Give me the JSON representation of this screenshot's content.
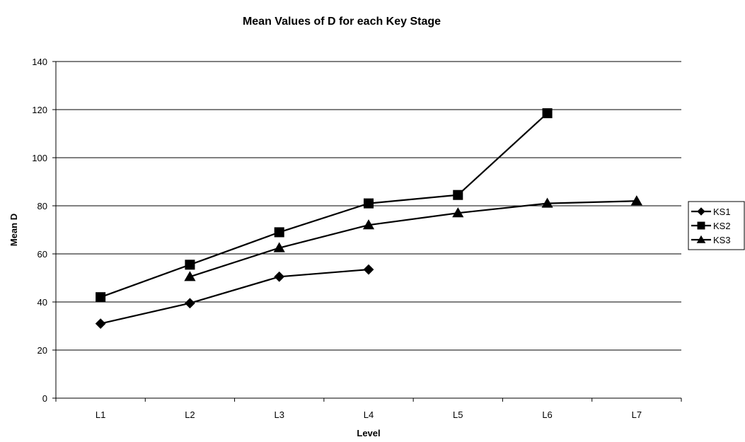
{
  "chart_data": {
    "type": "line",
    "title": "Mean Values of D for each Key Stage",
    "xlabel": "Level",
    "ylabel": "Mean D",
    "categories": [
      "L1",
      "L2",
      "L3",
      "L4",
      "L5",
      "L6",
      "L7"
    ],
    "ylim": [
      0,
      140
    ],
    "yticks": [
      0,
      20,
      40,
      60,
      80,
      100,
      120,
      140
    ],
    "grid": true,
    "legend_position": "right",
    "series": [
      {
        "name": "KS1",
        "marker": "diamond",
        "values": [
          31,
          39.5,
          50.5,
          53.5,
          null,
          null,
          null
        ]
      },
      {
        "name": "KS2",
        "marker": "square",
        "values": [
          42,
          55.5,
          69,
          81,
          84.5,
          118.5,
          null
        ]
      },
      {
        "name": "KS3",
        "marker": "triangle",
        "values": [
          null,
          50.5,
          62.5,
          72,
          77,
          81,
          82
        ]
      }
    ],
    "colors": {
      "line": "#000000",
      "grid": "#000000",
      "background": "#ffffff"
    }
  }
}
